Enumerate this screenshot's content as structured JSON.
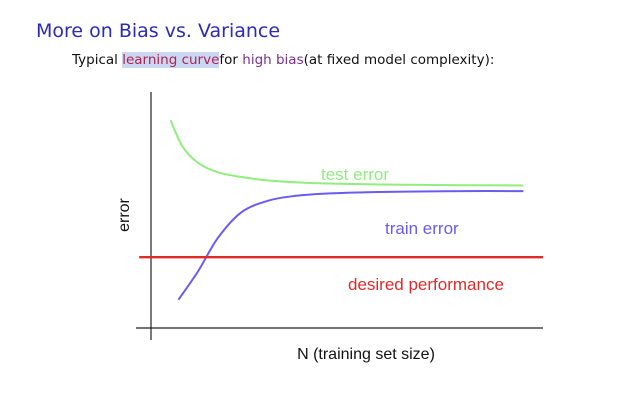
{
  "slide": {
    "title": "More on Bias vs. Variance",
    "subtitle": {
      "part1": "Typical ",
      "highlight": "learning curve",
      "part2": "for ",
      "emph": "high bias",
      "part3": "(at fixed model complexity):"
    }
  },
  "chart_data": {
    "type": "line",
    "title": "",
    "xlabel": "N (training set size)",
    "ylabel": "error",
    "grid": false,
    "series": [
      {
        "name": "test error",
        "color": "#8fee7e",
        "x": [
          0.05,
          0.08,
          0.12,
          0.17,
          0.23,
          0.3,
          0.4,
          0.52,
          0.65,
          0.8,
          0.95
        ],
        "y": [
          0.88,
          0.77,
          0.7,
          0.66,
          0.64,
          0.625,
          0.615,
          0.61,
          0.607,
          0.605,
          0.604
        ]
      },
      {
        "name": "train error",
        "color": "#6a5cf0",
        "x": [
          0.07,
          0.12,
          0.17,
          0.23,
          0.3,
          0.37,
          0.45,
          0.55,
          0.65,
          0.8,
          0.95
        ],
        "y": [
          0.12,
          0.24,
          0.38,
          0.49,
          0.54,
          0.56,
          0.57,
          0.575,
          0.578,
          0.58,
          0.58
        ]
      },
      {
        "name": "desired performance",
        "color": "#e02a2a",
        "x": [
          -0.03,
          1.0
        ],
        "y": [
          0.3,
          0.3
        ]
      }
    ]
  }
}
